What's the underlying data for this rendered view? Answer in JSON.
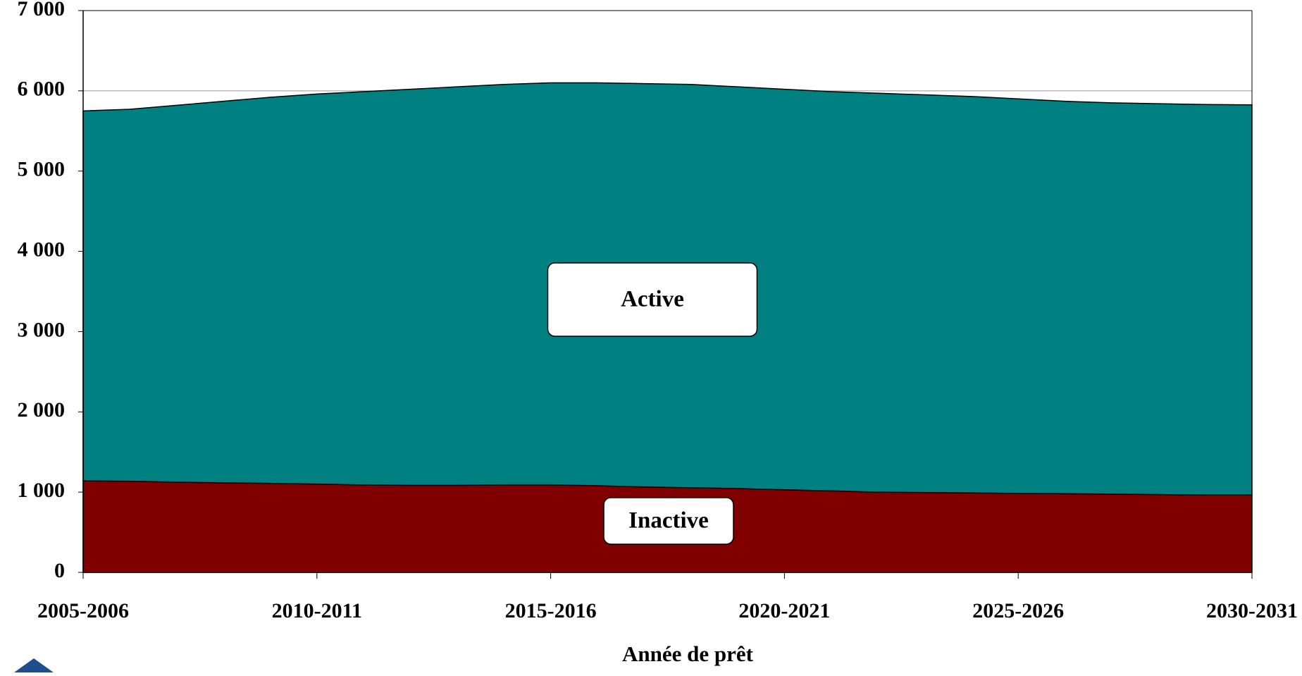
{
  "chart_data": {
    "type": "area",
    "stacked": true,
    "x_label": "Année de prêt",
    "categories": [
      "2005-2006",
      null,
      null,
      null,
      null,
      "2010-2011",
      null,
      null,
      null,
      null,
      "2015-2016",
      null,
      null,
      null,
      null,
      "2020-2021",
      null,
      null,
      null,
      null,
      "2025-2026",
      null,
      null,
      null,
      null,
      "2030-2031"
    ],
    "series": [
      {
        "name": "Inactive",
        "color": "#800000",
        "values": [
          1140,
          1135,
          1125,
          1115,
          1110,
          1100,
          1090,
          1085,
          1085,
          1090,
          1090,
          1080,
          1065,
          1055,
          1045,
          1030,
          1015,
          1000,
          995,
          990,
          985,
          980,
          975,
          970,
          965,
          965
        ]
      },
      {
        "name": "Active",
        "color": "#008080",
        "values": [
          4610,
          4635,
          4695,
          4755,
          4810,
          4860,
          4900,
          4935,
          4965,
          4990,
          5010,
          5020,
          5025,
          5025,
          5005,
          4990,
          4975,
          4970,
          4955,
          4940,
          4915,
          4890,
          4875,
          4870,
          4865,
          4860
        ]
      }
    ],
    "ylim": [
      0,
      7000
    ],
    "yticks": [
      0,
      {
        "value": 1000,
        "label": "1 000"
      },
      {
        "value": 2000,
        "label": "2 000"
      },
      {
        "value": 3000,
        "label": "3 000"
      },
      {
        "value": 4000,
        "label": "4 000"
      },
      {
        "value": 5000,
        "label": "5 000"
      },
      {
        "value": 6000,
        "label": "6 000"
      },
      {
        "value": 7000,
        "label": "7 000"
      }
    ],
    "grid": true
  }
}
